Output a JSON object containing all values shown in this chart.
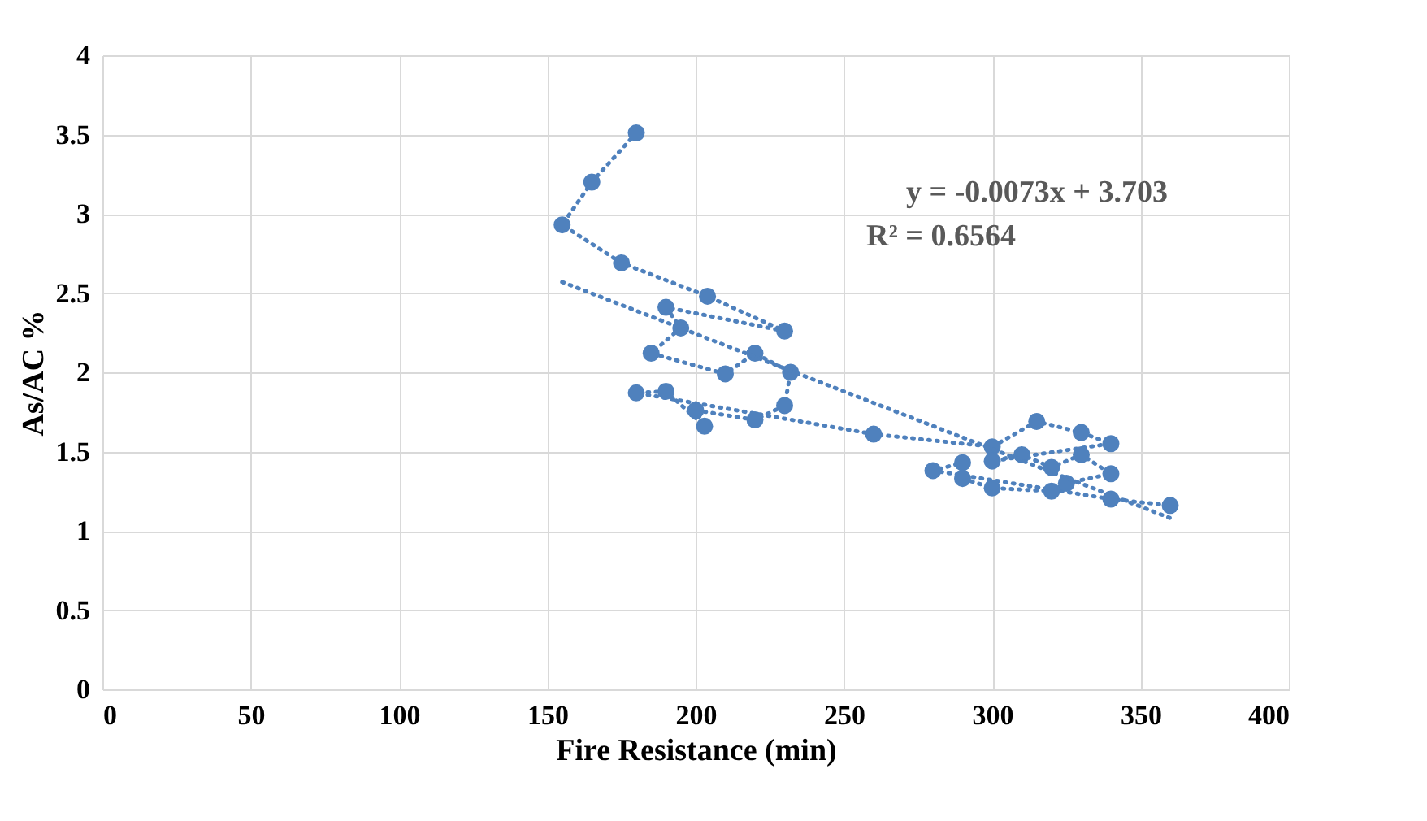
{
  "chart_data": {
    "type": "line",
    "xlabel": "Fire Resistance (min)",
    "ylabel": "As/AC %",
    "xlim": [
      0,
      400
    ],
    "xticks": [
      0,
      50,
      100,
      150,
      200,
      250,
      300,
      350,
      400
    ],
    "ylim": [
      0,
      4
    ],
    "yticks": [
      0,
      0.5,
      1,
      1.5,
      2,
      2.5,
      3,
      3.5,
      4
    ],
    "grid": true,
    "legend": false,
    "line_style": "dotted",
    "annotations": [
      "y = -0.0073x + 3.703",
      "R² = 0.6564"
    ],
    "series": [
      {
        "marker": "circle",
        "color": "#4f81bd",
        "x": [
          180,
          165,
          155,
          175,
          204,
          230,
          190,
          195,
          185,
          210,
          220,
          232,
          230,
          220,
          200,
          203,
          190,
          180,
          260,
          300,
          315,
          330,
          340,
          300,
          310,
          320,
          330,
          340,
          325,
          320,
          300,
          290,
          290,
          280,
          340,
          360
        ],
        "values": [
          3.51,
          3.2,
          2.93,
          2.69,
          2.48,
          2.26,
          2.41,
          2.28,
          2.12,
          1.99,
          2.12,
          2.0,
          1.79,
          1.7,
          1.76,
          1.66,
          1.88,
          1.87,
          1.61,
          1.53,
          1.69,
          1.62,
          1.55,
          1.44,
          1.48,
          1.4,
          1.48,
          1.36,
          1.3,
          1.25,
          1.27,
          1.33,
          1.43,
          1.38,
          1.2,
          1.16
        ]
      },
      {
        "marker": "none",
        "color": "#4f81bd",
        "x": [
          155,
          360
        ],
        "values": [
          2.57,
          1.08
        ]
      }
    ]
  }
}
